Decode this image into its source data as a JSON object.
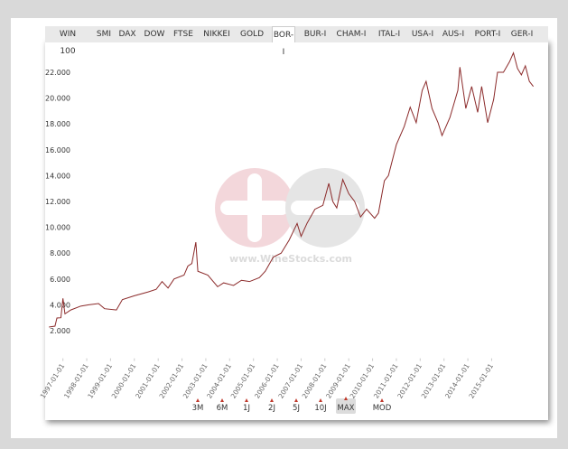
{
  "tabs": [
    "WIN 100",
    "SMI",
    "DAX",
    "DOW",
    "FTSE",
    "NIKKEI",
    "GOLD",
    "BOR-I",
    "BUR-I",
    "CHAM-I",
    "ITAL-I",
    "USA-I",
    "AUS-I",
    "PORT-I",
    "GER-I"
  ],
  "selected_tab": "BOR-I",
  "range_buttons": [
    "3M",
    "6M",
    "1J",
    "2J",
    "5J",
    "10J",
    "MAX",
    "MOD"
  ],
  "selected_range": "MAX",
  "watermark": "www.WineStocks.com",
  "chart_data": {
    "type": "line",
    "color": "#8b2a2a",
    "x": [
      "1996-06-01",
      "1996-09-01",
      "1996-10-01",
      "1996-12-01",
      "1997-01-01",
      "1997-02-01",
      "1997-05-01",
      "1997-10-01",
      "1998-02-01",
      "1998-07-01",
      "1998-10-01",
      "1999-04-01",
      "1999-07-01",
      "2000-01-01",
      "2000-08-01",
      "2000-12-01",
      "2001-03-01",
      "2001-06-01",
      "2001-09-01",
      "2002-02-01",
      "2002-04-01",
      "2002-06-01",
      "2002-08-01",
      "2002-09-01",
      "2003-02-01",
      "2003-07-01",
      "2003-10-01",
      "2004-03-01",
      "2004-07-01",
      "2004-11-01",
      "2005-04-01",
      "2005-07-01",
      "2005-11-01",
      "2006-03-01",
      "2006-07-01",
      "2006-11-01",
      "2007-01-01",
      "2007-04-01",
      "2007-08-01",
      "2007-12-01",
      "2008-03-01",
      "2008-05-01",
      "2008-07-01",
      "2008-10-01",
      "2009-01-01",
      "2009-04-01",
      "2009-07-01",
      "2009-10-01",
      "2010-02-01",
      "2010-04-01",
      "2010-07-01",
      "2010-09-01",
      "2011-01-01",
      "2011-05-01",
      "2011-08-01",
      "2011-11-01",
      "2012-02-01",
      "2012-04-01",
      "2012-07-01",
      "2012-10-01",
      "2012-12-01",
      "2013-04-01",
      "2013-08-01",
      "2013-09-01",
      "2013-12-01",
      "2014-03-01",
      "2014-06-01",
      "2014-08-01",
      "2014-11-01",
      "2015-02-01",
      "2015-04-01",
      "2015-07-01",
      "2015-10-01",
      "2015-12-01",
      "2016-02-01",
      "2016-04-01",
      "2016-06-01",
      "2016-08-01",
      "2016-10-01"
    ],
    "values": [
      2280,
      2350,
      2980,
      3000,
      4500,
      3300,
      3600,
      3900,
      4000,
      4100,
      3700,
      3600,
      4400,
      4700,
      5000,
      5200,
      5800,
      5300,
      6000,
      6300,
      7000,
      7200,
      8850,
      6600,
      6300,
      5400,
      5700,
      5500,
      5900,
      5800,
      6100,
      6600,
      7700,
      8000,
      9000,
      10300,
      9300,
      10300,
      11400,
      11700,
      13400,
      12000,
      11500,
      13700,
      12600,
      12000,
      10800,
      11400,
      10700,
      11100,
      13600,
      14000,
      16400,
      17800,
      19300,
      18100,
      20600,
      21300,
      19200,
      18100,
      17100,
      18500,
      20600,
      22400,
      19200,
      20900,
      18900,
      20900,
      18100,
      19900,
      22000,
      22000,
      22800,
      23500,
      22300,
      21800,
      22500,
      21300,
      20900
    ],
    "xlim": [
      "1996-05-01",
      "2016-12-01"
    ],
    "xticks": [
      "1997-01-01",
      "1998-01-01",
      "1999-01-01",
      "2000-01-01",
      "2001-01-01",
      "2002-01-01",
      "2003-01-01",
      "2004-01-01",
      "2005-01-01",
      "2006-01-01",
      "2007-01-01",
      "2008-01-01",
      "2009-01-01",
      "2010-01-01",
      "2011-01-01",
      "2012-01-01",
      "2013-01-01",
      "2014-01-01",
      "2015-01-01"
    ],
    "ylim": [
      0,
      24000
    ],
    "yticks": [
      {
        "value": 2000,
        "label": "2.000"
      },
      {
        "value": 4000,
        "label": "4.000"
      },
      {
        "value": 6000,
        "label": "6.000"
      },
      {
        "value": 8000,
        "label": "8.000"
      },
      {
        "value": 10000,
        "label": "10.000"
      },
      {
        "value": 12000,
        "label": "12.000"
      },
      {
        "value": 14000,
        "label": "14.000"
      },
      {
        "value": 16000,
        "label": "16.000"
      },
      {
        "value": 18000,
        "label": "18.000"
      },
      {
        "value": 20000,
        "label": "20.000"
      },
      {
        "value": 22000,
        "label": "22.000"
      }
    ],
    "grid": false
  }
}
